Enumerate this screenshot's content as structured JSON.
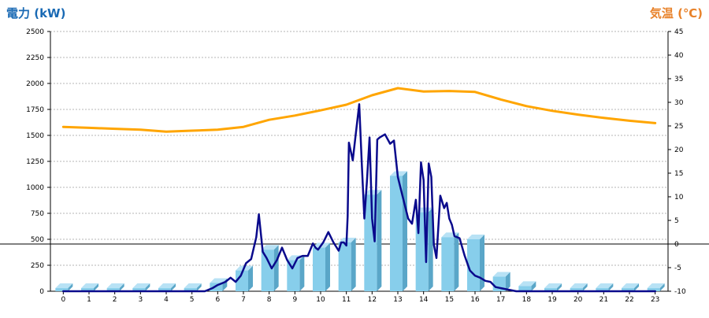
{
  "chart_data": {
    "type": "bar",
    "ylabel": "電力 (kW)",
    "y2label": "気温 (℃)",
    "categories": [
      "0",
      "1",
      "2",
      "3",
      "4",
      "5",
      "6",
      "7",
      "8",
      "9",
      "10",
      "11",
      "12",
      "13",
      "14",
      "15",
      "16",
      "17",
      "18",
      "19",
      "20",
      "21",
      "22",
      "23"
    ],
    "ylim": [
      0,
      2500
    ],
    "yticks": [
      0,
      250,
      500,
      750,
      1000,
      1250,
      1500,
      1750,
      2000,
      2250,
      2500
    ],
    "y2lim": [
      -10,
      45
    ],
    "y2ticks": [
      -10,
      -5,
      0,
      5,
      10,
      15,
      20,
      25,
      30,
      35,
      40,
      45
    ],
    "grid": true,
    "series": [
      {
        "kind": "bar",
        "axis": "left",
        "values": [
          30,
          30,
          30,
          30,
          30,
          30,
          80,
          200,
          400,
          300,
          420,
          470,
          930,
          1110,
          760,
          520,
          500,
          140,
          50,
          30,
          30,
          30,
          30,
          30
        ]
      },
      {
        "kind": "line",
        "axis": "left",
        "x": [
          0,
          5.5,
          5.8,
          6.0,
          6.3,
          6.5,
          6.7,
          6.9,
          7.1,
          7.3,
          7.5,
          7.6,
          7.75,
          7.9,
          8.1,
          8.3,
          8.5,
          8.7,
          8.9,
          9.1,
          9.3,
          9.5,
          9.7,
          9.8,
          9.9,
          10.1,
          10.3,
          10.5,
          10.7,
          10.8,
          10.9,
          11.0,
          11.05,
          11.1,
          11.25,
          11.35,
          11.5,
          11.6,
          11.7,
          11.8,
          11.9,
          12.0,
          12.1,
          12.2,
          12.3,
          12.5,
          12.7,
          12.85,
          13.0,
          13.2,
          13.4,
          13.55,
          13.7,
          13.8,
          13.9,
          14.0,
          14.1,
          14.2,
          14.3,
          14.4,
          14.5,
          14.65,
          14.8,
          14.9,
          15.0,
          15.1,
          15.2,
          15.4,
          15.6,
          15.8,
          16.0,
          16.2,
          16.4,
          16.6,
          16.8,
          17.2,
          17.6,
          18.0,
          18.5,
          23.0
        ],
        "values": [
          0,
          0,
          30,
          60,
          90,
          130,
          90,
          150,
          270,
          310,
          520,
          740,
          380,
          320,
          220,
          300,
          420,
          300,
          220,
          320,
          340,
          340,
          460,
          420,
          400,
          470,
          570,
          470,
          390,
          470,
          470,
          440,
          720,
          1430,
          1260,
          1480,
          1800,
          1220,
          700,
          1060,
          1480,
          700,
          480,
          1460,
          1480,
          1510,
          1420,
          1450,
          1100,
          900,
          700,
          650,
          880,
          560,
          1240,
          1070,
          280,
          1230,
          1100,
          450,
          320,
          920,
          800,
          850,
          700,
          640,
          530,
          510,
          340,
          200,
          150,
          130,
          100,
          90,
          40,
          20,
          0,
          0,
          0,
          0
        ]
      },
      {
        "kind": "line",
        "axis": "right",
        "x": [
          0,
          1,
          2,
          3,
          4,
          5,
          6,
          7,
          8,
          9,
          10,
          11,
          12,
          13,
          14,
          15,
          16,
          17,
          18,
          19,
          20,
          21,
          22,
          23
        ],
        "values": [
          24.8,
          24.6,
          24.4,
          24.2,
          23.8,
          24.0,
          24.2,
          24.8,
          26.3,
          27.2,
          28.3,
          29.5,
          31.5,
          33.0,
          32.3,
          32.4,
          32.2,
          30.6,
          29.2,
          28.2,
          27.4,
          26.7,
          26.1,
          25.6
        ]
      }
    ]
  },
  "colors": {
    "bar_front": "#87ceeb",
    "bar_top": "#b8e2f5",
    "bar_side": "#5aa6c8",
    "power_line": "#0a0a8c",
    "temp_line": "#ffa500",
    "grid": "#b4b4b4",
    "left_title": "#1a6ab4",
    "right_title": "#e8822a"
  }
}
